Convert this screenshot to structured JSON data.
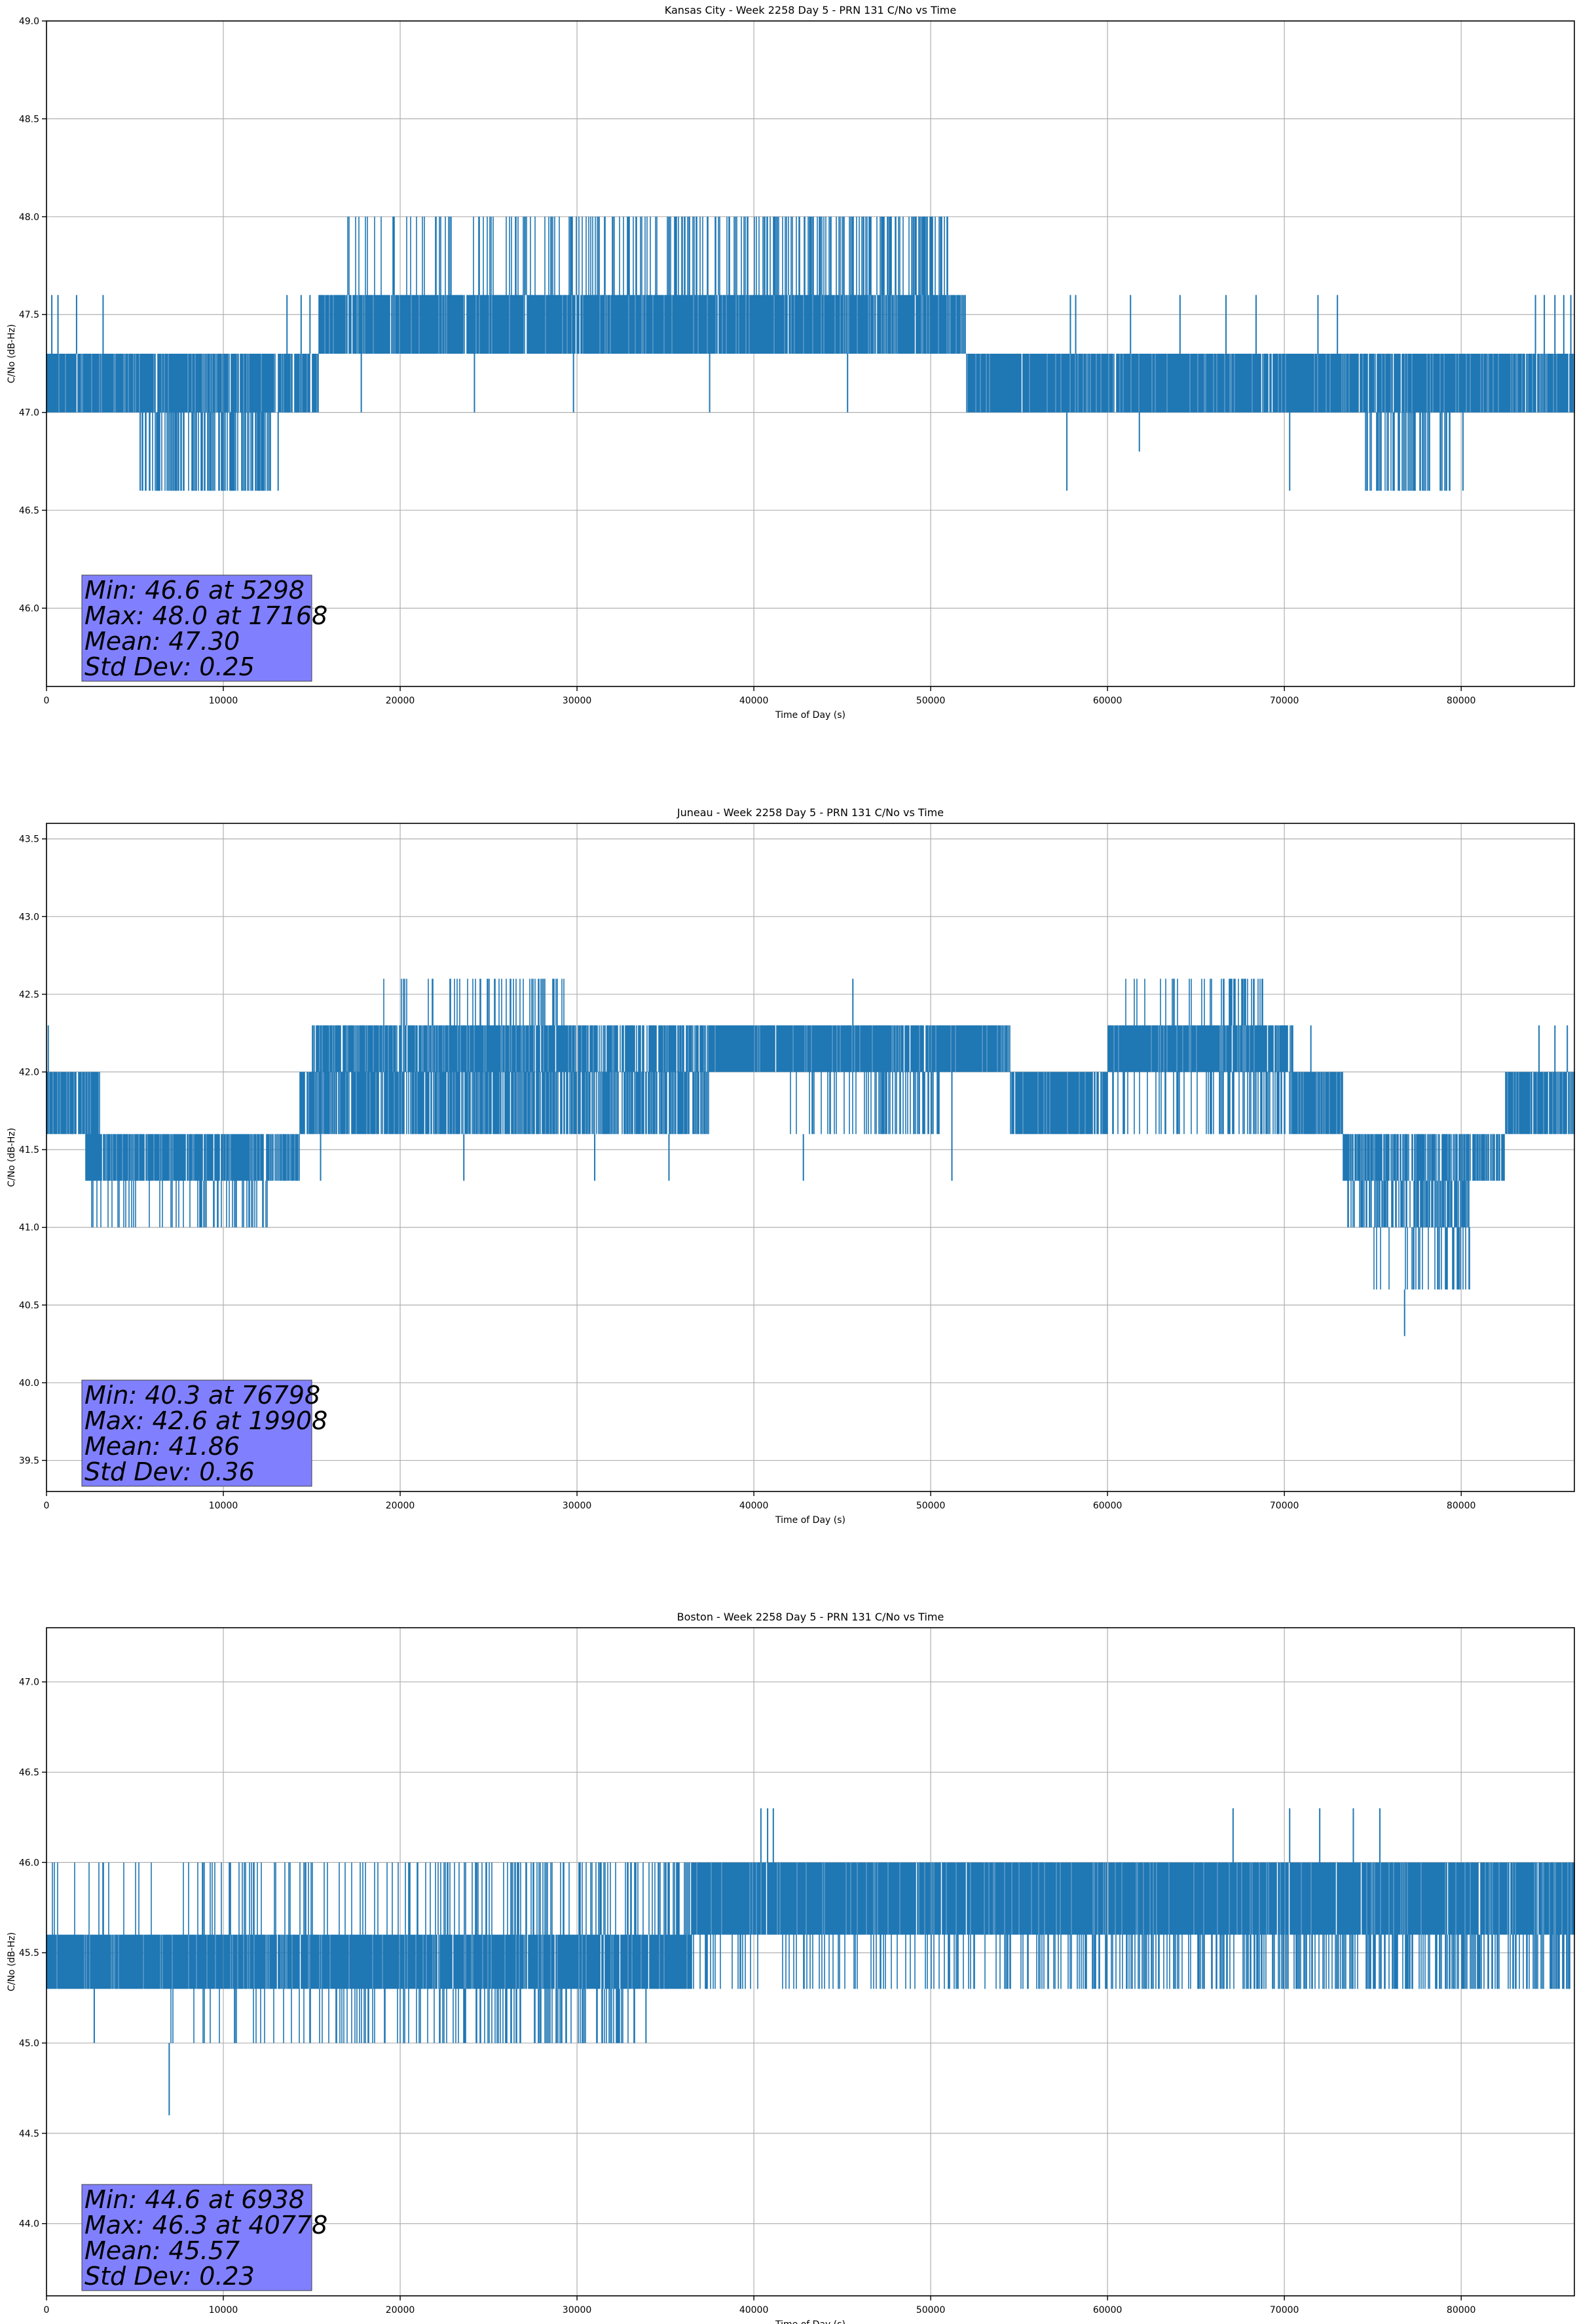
{
  "figure": {
    "stats_box_color": "#8080ff",
    "series_color": "#1f77b4"
  },
  "chart_data": [
    {
      "type": "line",
      "title": "Kansas City - Week 2258 Day 5 - PRN 131 C/No vs Time",
      "xlabel": "Time of Day (s)",
      "ylabel": "C/No (dB-Hz)",
      "xlim": [
        0,
        86400
      ],
      "ylim": [
        45.6,
        49.0
      ],
      "xticks": [
        0,
        10000,
        20000,
        30000,
        40000,
        50000,
        60000,
        70000,
        80000
      ],
      "yticks": [
        46.0,
        46.5,
        47.0,
        47.5,
        48.0,
        48.5,
        49.0
      ],
      "grid": true,
      "stats_lines": [
        "Min: 46.6 at 5298",
        "Max: 48.0 at 17168",
        "Mean: 47.30",
        "Std Dev: 0.25"
      ],
      "series": [
        {
          "name": "C/No",
          "segments": [
            {
              "x0": 0,
              "x1": 15400,
              "lo": 47.0,
              "hi": 47.3,
              "dense": [
                0.9,
                0.8
              ]
            },
            {
              "x0": 5300,
              "x1": 12700,
              "lo": 46.6,
              "hi": 47.0,
              "dense": [
                0.35,
                0.6
              ]
            },
            {
              "x0": 15400,
              "x1": 52000,
              "lo": 47.3,
              "hi": 47.6,
              "dense": [
                0.9,
                0.85
              ]
            },
            {
              "x0": 17000,
              "x1": 51000,
              "lo": 47.6,
              "hi": 48.0,
              "dense": [
                0.1,
                0.4
              ]
            },
            {
              "x0": 52000,
              "x1": 86400,
              "lo": 47.0,
              "hi": 47.3,
              "dense": [
                0.9,
                0.85
              ]
            },
            {
              "x0": 74500,
              "x1": 79500,
              "lo": 46.6,
              "hi": 47.0,
              "dense": [
                0.3,
                0.5
              ]
            }
          ],
          "spikes": [
            [
              300,
              47.6
            ],
            [
              650,
              47.6
            ],
            [
              1700,
              47.6
            ],
            [
              3200,
              47.6
            ],
            [
              13600,
              47.6
            ],
            [
              14400,
              47.6
            ],
            [
              14900,
              47.6
            ],
            [
              5298,
              46.6
            ],
            [
              13100,
              46.6
            ],
            [
              17168,
              48.0
            ],
            [
              57900,
              47.6
            ],
            [
              58200,
              47.6
            ],
            [
              57700,
              46.6
            ],
            [
              61300,
              47.6
            ],
            [
              64100,
              47.6
            ],
            [
              66700,
              47.6
            ],
            [
              68400,
              47.6
            ],
            [
              71900,
              47.6
            ],
            [
              73000,
              47.6
            ],
            [
              70300,
              46.6
            ],
            [
              80100,
              46.6
            ],
            [
              84200,
              47.6
            ],
            [
              84700,
              47.6
            ],
            [
              85300,
              47.6
            ],
            [
              85800,
              47.6
            ],
            [
              17800,
              47.0
            ],
            [
              24200,
              47.0
            ],
            [
              29800,
              47.0
            ],
            [
              37500,
              47.0
            ],
            [
              45300,
              47.0
            ],
            [
              61800,
              46.8
            ],
            [
              86200,
              47.6
            ]
          ]
        }
      ]
    },
    {
      "type": "line",
      "title": "Juneau - Week 2258 Day 5 - PRN 131 C/No vs Time",
      "xlabel": "Time of Day (s)",
      "ylabel": "C/No (dB-Hz)",
      "xlim": [
        0,
        86400
      ],
      "ylim": [
        39.3,
        43.6
      ],
      "xticks": [
        0,
        10000,
        20000,
        30000,
        40000,
        50000,
        60000,
        70000,
        80000
      ],
      "yticks": [
        39.5,
        40.0,
        40.5,
        41.0,
        41.5,
        42.0,
        42.5,
        43.0,
        43.5
      ],
      "grid": true,
      "stats_lines": [
        "Min: 40.3 at 76798",
        "Max: 42.6 at 19908",
        "Mean: 41.86",
        "Std Dev: 0.36"
      ],
      "series": [
        {
          "name": "C/No",
          "segments": [
            {
              "x0": 0,
              "x1": 3000,
              "lo": 41.6,
              "hi": 42.0,
              "dense": [
                0.9,
                0.7
              ]
            },
            {
              "x0": 2200,
              "x1": 14300,
              "lo": 41.3,
              "hi": 41.6,
              "dense": [
                0.85,
                0.8
              ]
            },
            {
              "x0": 2500,
              "x1": 12500,
              "lo": 41.0,
              "hi": 41.3,
              "dense": [
                0.12,
                0.3
              ]
            },
            {
              "x0": 14300,
              "x1": 37500,
              "lo": 41.6,
              "hi": 42.0,
              "dense": [
                0.8,
                0.6
              ]
            },
            {
              "x0": 15000,
              "x1": 37500,
              "lo": 42.0,
              "hi": 42.3,
              "dense": [
                0.85,
                0.7
              ]
            },
            {
              "x0": 19000,
              "x1": 29500,
              "lo": 42.3,
              "hi": 42.6,
              "dense": [
                0.05,
                0.3
              ]
            },
            {
              "x0": 37500,
              "x1": 54500,
              "lo": 42.0,
              "hi": 42.3,
              "dense": [
                0.95,
                0.85
              ]
            },
            {
              "x0": 42000,
              "x1": 50500,
              "lo": 41.6,
              "hi": 42.0,
              "dense": [
                0.15,
                0.4
              ]
            },
            {
              "x0": 54500,
              "x1": 60000,
              "lo": 41.6,
              "hi": 42.0,
              "dense": [
                0.95,
                0.8
              ]
            },
            {
              "x0": 60000,
              "x1": 70500,
              "lo": 42.0,
              "hi": 42.3,
              "dense": [
                0.95,
                0.8
              ]
            },
            {
              "x0": 60000,
              "x1": 70500,
              "lo": 41.6,
              "hi": 42.0,
              "dense": [
                0.15,
                0.4
              ]
            },
            {
              "x0": 60000,
              "x1": 68800,
              "lo": 42.3,
              "hi": 42.6,
              "dense": [
                0.05,
                0.3
              ]
            },
            {
              "x0": 70500,
              "x1": 73300,
              "lo": 41.6,
              "hi": 42.0,
              "dense": [
                0.9,
                0.7
              ]
            },
            {
              "x0": 73300,
              "x1": 82500,
              "lo": 41.3,
              "hi": 41.6,
              "dense": [
                0.75,
                0.7
              ]
            },
            {
              "x0": 73500,
              "x1": 80500,
              "lo": 41.0,
              "hi": 41.3,
              "dense": [
                0.4,
                0.6
              ]
            },
            {
              "x0": 74500,
              "x1": 80500,
              "lo": 40.6,
              "hi": 41.0,
              "dense": [
                0.05,
                0.4
              ]
            },
            {
              "x0": 82500,
              "x1": 86400,
              "lo": 41.6,
              "hi": 42.0,
              "dense": [
                0.9,
                0.75
              ]
            }
          ],
          "spikes": [
            [
              100,
              42.3
            ],
            [
              19908,
              42.6
            ],
            [
              45600,
              42.6
            ],
            [
              76798,
              40.3
            ],
            [
              74500,
              40.6
            ],
            [
              75900,
              40.6
            ],
            [
              81200,
              41.3
            ],
            [
              84400,
              42.3
            ],
            [
              85300,
              42.3
            ],
            [
              86000,
              42.3
            ],
            [
              71500,
              42.3
            ],
            [
              52500,
              42.3
            ],
            [
              23600,
              41.3
            ],
            [
              31000,
              41.3
            ],
            [
              35200,
              41.3
            ],
            [
              42800,
              41.3
            ],
            [
              47500,
              41.6
            ],
            [
              58100,
              41.6
            ],
            [
              51200,
              41.3
            ],
            [
              15500,
              41.3
            ],
            [
              10200,
              41.0
            ],
            [
              12400,
              41.0
            ]
          ]
        }
      ]
    },
    {
      "type": "line",
      "title": "Boston - Week 2258 Day 5 - PRN 131 C/No vs Time",
      "xlabel": "Time of Day (s)",
      "ylabel": "C/No (dB-Hz)",
      "xlim": [
        0,
        86400
      ],
      "ylim": [
        43.6,
        47.3
      ],
      "xticks": [
        0,
        10000,
        20000,
        30000,
        40000,
        50000,
        60000,
        70000,
        80000
      ],
      "yticks": [
        44.0,
        44.5,
        45.0,
        45.5,
        46.0,
        46.5,
        47.0
      ],
      "grid": true,
      "stats_lines": [
        "Min: 44.6 at 6938",
        "Max: 46.3 at 40778",
        "Mean: 45.57",
        "Std Dev: 0.23"
      ],
      "series": [
        {
          "name": "C/No",
          "segments": [
            {
              "x0": 0,
              "x1": 36500,
              "lo": 45.3,
              "hi": 45.6,
              "dense": [
                0.95,
                0.85
              ]
            },
            {
              "x0": 6500,
              "x1": 33300,
              "lo": 45.0,
              "hi": 45.3,
              "dense": [
                0.04,
                0.3
              ]
            },
            {
              "x0": 36500,
              "x1": 86400,
              "lo": 45.6,
              "hi": 46.0,
              "dense": [
                0.95,
                0.85
              ]
            },
            {
              "x0": 36500,
              "x1": 86400,
              "lo": 45.3,
              "hi": 45.6,
              "dense": [
                0.15,
                0.4
              ]
            },
            {
              "x0": 200,
              "x1": 36500,
              "lo": 45.6,
              "hi": 46.0,
              "dense": [
                0.04,
                0.3
              ]
            }
          ],
          "spikes": [
            [
              6938,
              44.6
            ],
            [
              40778,
              46.3
            ],
            [
              40400,
              46.3
            ],
            [
              41100,
              46.3
            ],
            [
              67100,
              46.3
            ],
            [
              70300,
              46.3
            ],
            [
              72000,
              46.3
            ],
            [
              73900,
              46.3
            ],
            [
              75400,
              46.3
            ],
            [
              2700,
              45.0
            ],
            [
              13800,
              45.0
            ],
            [
              20100,
              45.0
            ],
            [
              33900,
              45.0
            ],
            [
              24400,
              45.0
            ],
            [
              30200,
              45.0
            ],
            [
              36700,
              46.0
            ],
            [
              43000,
              45.3
            ],
            [
              52300,
              45.3
            ],
            [
              62500,
              45.3
            ],
            [
              70800,
              45.3
            ],
            [
              79800,
              45.3
            ],
            [
              86200,
              45.6
            ]
          ]
        }
      ]
    }
  ]
}
